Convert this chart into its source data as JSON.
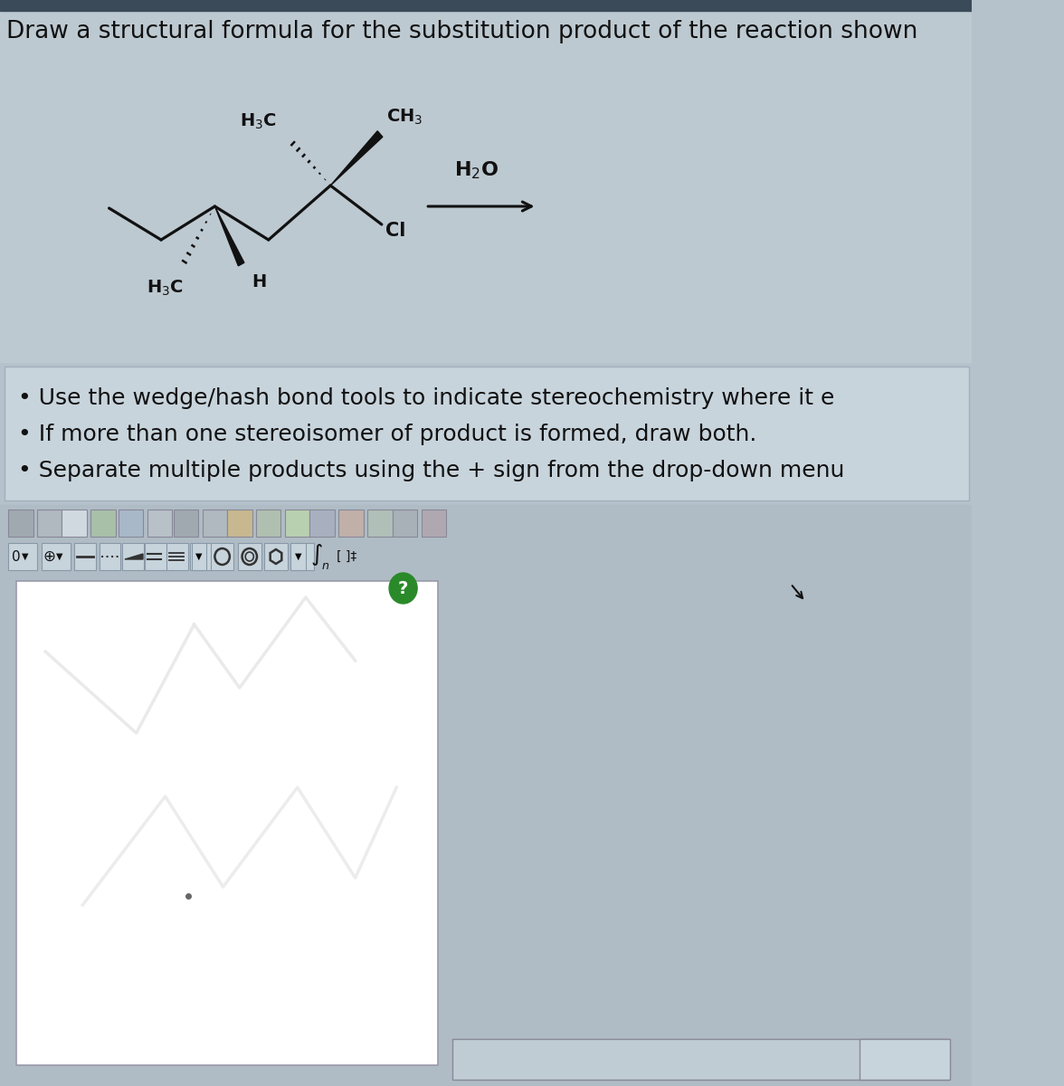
{
  "title_text": "Draw a structural formula for the substitution product of the reaction shown",
  "bg_top": "#b5c2cb",
  "bg_instr": "#c5ced6",
  "bg_toolbar": "#b0bcc5",
  "bg_drawing": "#b0bcc5",
  "instructions": [
    "Use the wedge/hash bond tools to indicate stereochemistry where it e​",
    "If more than one stereoisomer of product is formed, draw both.",
    "Separate multiple products using the + sign from the drop-down menu​"
  ],
  "font_color": "#111111",
  "bond_color": "#111111",
  "title_fontsize": 19,
  "instr_fontsize": 18,
  "mol_scale": 1.0
}
